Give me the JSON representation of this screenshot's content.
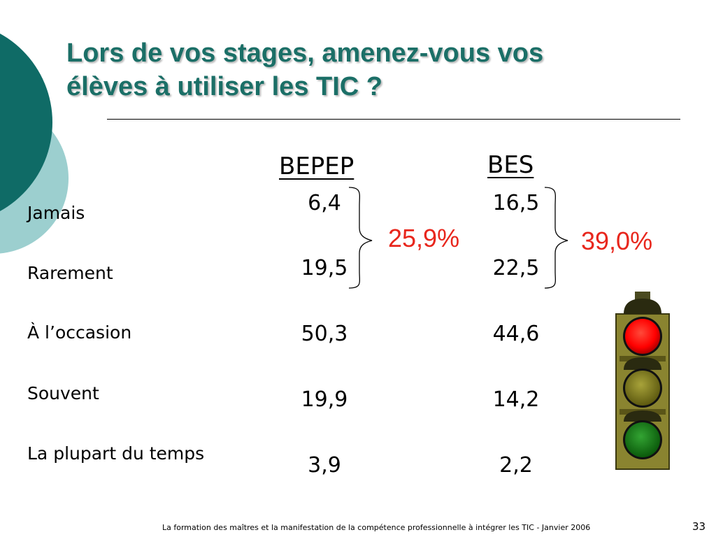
{
  "title": {
    "line1": "Lors de vos stages, amenez-vous vos",
    "line2": "élèves à utiliser les TIC ?"
  },
  "columns": [
    "BEPEP",
    "BES"
  ],
  "rows": [
    {
      "label": "Jamais",
      "bepep": "6,4",
      "bes": "16,5"
    },
    {
      "label": "Rarement",
      "bepep": "19,5",
      "bes": "22,5"
    },
    {
      "label": "À l’occasion",
      "bepep": "50,3",
      "bes": "44,6"
    },
    {
      "label": "Souvent",
      "bepep": "19,9",
      "bes": "14,2"
    },
    {
      "label": "La plupart du temps",
      "bepep": "3,9",
      "bes": "2,2"
    }
  ],
  "totals": {
    "bepep": "25,9%",
    "bes": "39,0%"
  },
  "footer": "La formation des maîtres et la manifestation de la compétence professionnelle à intégrer les TIC - Janvier 2006",
  "page_number": "33",
  "colors": {
    "title": "#1b6f67",
    "accent_dark": "#0f6b66",
    "accent_light": "#9ccfcf",
    "percent": "#e8261c"
  }
}
